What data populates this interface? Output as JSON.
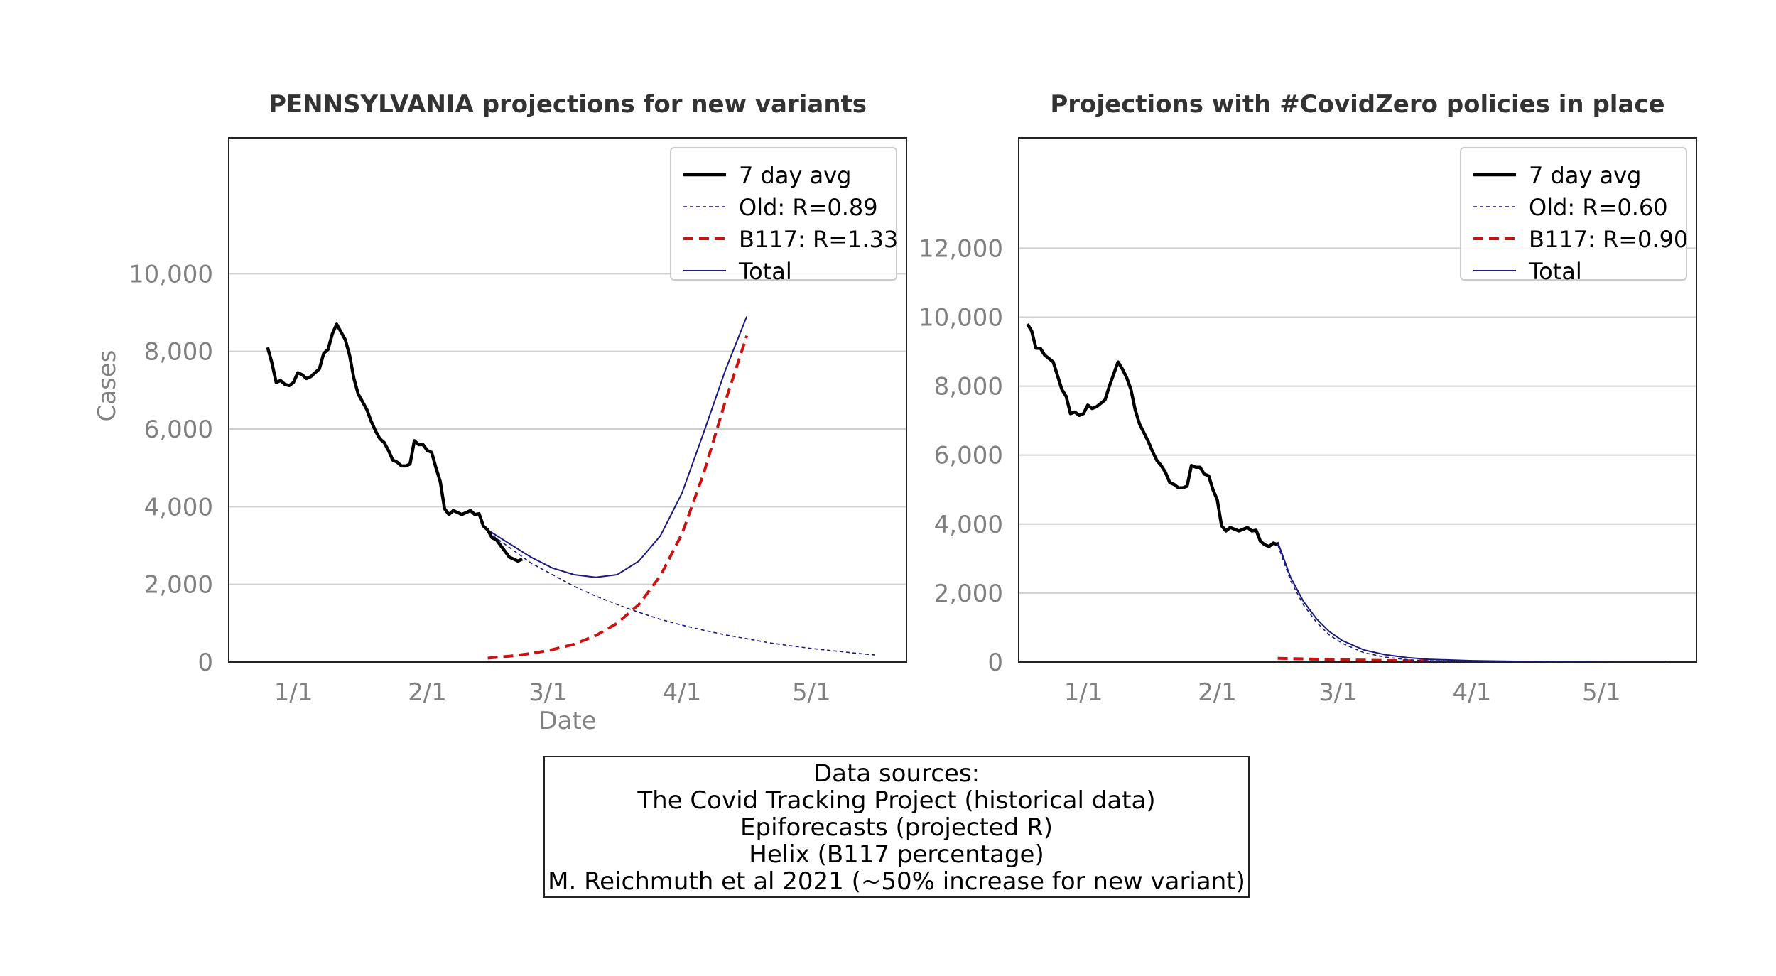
{
  "chart_data": [
    {
      "type": "line",
      "title": "PENNSYLVANIA projections for new variants",
      "xlabel": "Date",
      "ylabel": "Cases",
      "ylim": [
        0,
        13500
      ],
      "xlim": [
        -15,
        142
      ],
      "x_unit": "days since 1/1",
      "xticks": [
        {
          "value": 0,
          "label": "1/1"
        },
        {
          "value": 31,
          "label": "2/1"
        },
        {
          "value": 59,
          "label": "3/1"
        },
        {
          "value": 90,
          "label": "4/1"
        },
        {
          "value": 120,
          "label": "5/1"
        }
      ],
      "yticks": [
        {
          "value": 0,
          "label": "0"
        },
        {
          "value": 2000,
          "label": "2,000"
        },
        {
          "value": 4000,
          "label": "4,000"
        },
        {
          "value": 6000,
          "label": "6,000"
        },
        {
          "value": 8000,
          "label": "8,000"
        },
        {
          "value": 10000,
          "label": "10,000"
        }
      ],
      "grid": "horizontal",
      "legend_position": "top-right",
      "legend": [
        "7 day avg",
        "Old: R=0.89",
        "B117: R=1.33",
        "Total"
      ],
      "series": [
        {
          "name": "7 day avg",
          "style": "solid-thick",
          "color": "#000000",
          "x": [
            -6,
            -5,
            -4,
            -3,
            -2,
            -1,
            0,
            1,
            2,
            3,
            4,
            5,
            6,
            7,
            8,
            9,
            10,
            11,
            12,
            13,
            14,
            15,
            16,
            17,
            18,
            19,
            20,
            21,
            22,
            23,
            24,
            25,
            26,
            27,
            28,
            29,
            30,
            31,
            32,
            33,
            34,
            35,
            36,
            37,
            38,
            39,
            40,
            41,
            42,
            43,
            44,
            45,
            46,
            47,
            48,
            49,
            50,
            51,
            52,
            53
          ],
          "values": [
            8100,
            7700,
            7200,
            7250,
            7150,
            7120,
            7200,
            7450,
            7400,
            7300,
            7350,
            7450,
            7550,
            7950,
            8050,
            8450,
            8700,
            8500,
            8300,
            7900,
            7300,
            6900,
            6700,
            6500,
            6200,
            5950,
            5750,
            5650,
            5450,
            5200,
            5150,
            5050,
            5050,
            5100,
            5700,
            5600,
            5600,
            5450,
            5400,
            5000,
            4650,
            3950,
            3800,
            3900,
            3850,
            3800,
            3850,
            3900,
            3800,
            3820,
            3500,
            3400,
            3200,
            3150,
            3000,
            2850,
            2700,
            2650,
            2600,
            2650
          ]
        },
        {
          "name": "Old: R=0.89",
          "style": "dashed-thin",
          "color": "#1a1a80",
          "x": [
            45,
            50,
            55,
            60,
            65,
            70,
            75,
            80,
            85,
            90,
            95,
            100,
            105,
            110,
            115,
            120,
            125,
            130,
            135
          ],
          "values": [
            3350,
            2950,
            2550,
            2250,
            1950,
            1700,
            1480,
            1280,
            1100,
            950,
            820,
            700,
            600,
            500,
            420,
            350,
            290,
            230,
            180
          ]
        },
        {
          "name": "B117: R=1.33",
          "style": "dashed-thick",
          "color": "#cc1111",
          "x": [
            45,
            50,
            55,
            60,
            65,
            70,
            75,
            80,
            85,
            90,
            95,
            100,
            105
          ],
          "values": [
            100,
            150,
            220,
            320,
            460,
            680,
            1000,
            1480,
            2220,
            3300,
            4850,
            6700,
            8400
          ]
        },
        {
          "name": "Total",
          "style": "solid-thin",
          "color": "#1a1a80",
          "x": [
            45,
            50,
            55,
            60,
            65,
            70,
            75,
            80,
            85,
            90,
            95,
            100,
            105
          ],
          "values": [
            3400,
            3050,
            2700,
            2420,
            2250,
            2180,
            2250,
            2600,
            3250,
            4350,
            5900,
            7500,
            8900
          ]
        }
      ]
    },
    {
      "type": "line",
      "title": "Projections with #CovidZero policies in place",
      "xlabel": "",
      "ylabel": "",
      "ylim": [
        0,
        15200
      ],
      "xlim": [
        -15,
        142
      ],
      "x_unit": "days since 1/1",
      "xticks": [
        {
          "value": 0,
          "label": "1/1"
        },
        {
          "value": 31,
          "label": "2/1"
        },
        {
          "value": 59,
          "label": "3/1"
        },
        {
          "value": 90,
          "label": "4/1"
        },
        {
          "value": 120,
          "label": "5/1"
        }
      ],
      "yticks": [
        {
          "value": 0,
          "label": "0"
        },
        {
          "value": 2000,
          "label": "2,000"
        },
        {
          "value": 4000,
          "label": "4,000"
        },
        {
          "value": 6000,
          "label": "6,000"
        },
        {
          "value": 8000,
          "label": "8,000"
        },
        {
          "value": 10000,
          "label": "10,000"
        },
        {
          "value": 12000,
          "label": "12,000"
        }
      ],
      "grid": "horizontal",
      "legend_position": "top-right",
      "legend": [
        "7 day avg",
        "Old: R=0.60",
        "B117: R=0.90",
        "Total"
      ],
      "series": [
        {
          "name": "7 day avg",
          "style": "solid-thick",
          "color": "#000000",
          "x": [
            -13,
            -12,
            -11,
            -10,
            -9,
            -8,
            -7,
            -6,
            -5,
            -4,
            -3,
            -2,
            -1,
            0,
            1,
            2,
            3,
            4,
            5,
            6,
            7,
            8,
            9,
            10,
            11,
            12,
            13,
            14,
            15,
            16,
            17,
            18,
            19,
            20,
            21,
            22,
            23,
            24,
            25,
            26,
            27,
            28,
            29,
            30,
            31,
            32,
            33,
            34,
            35,
            36,
            37,
            38,
            39,
            40,
            41,
            42,
            43,
            44,
            45
          ],
          "values": [
            9800,
            9600,
            9100,
            9100,
            8900,
            8800,
            8700,
            8300,
            7900,
            7700,
            7200,
            7250,
            7150,
            7200,
            7450,
            7350,
            7400,
            7500,
            7600,
            8000,
            8350,
            8700,
            8500,
            8250,
            7900,
            7300,
            6900,
            6650,
            6400,
            6100,
            5850,
            5700,
            5500,
            5200,
            5150,
            5050,
            5050,
            5100,
            5700,
            5650,
            5650,
            5450,
            5400,
            5000,
            4700,
            3950,
            3800,
            3900,
            3850,
            3800,
            3850,
            3900,
            3800,
            3820,
            3500,
            3400,
            3350,
            3450,
            3400
          ]
        },
        {
          "name": "Old: R=0.60",
          "style": "dashed-thin",
          "color": "#1a1a80",
          "x": [
            45,
            48,
            51,
            54,
            57,
            60,
            65,
            70,
            75,
            80,
            90,
            100,
            110,
            120,
            130,
            135
          ],
          "values": [
            3400,
            2350,
            1650,
            1150,
            780,
            540,
            270,
            140,
            70,
            35,
            10,
            3,
            1,
            0,
            0,
            0
          ]
        },
        {
          "name": "B117: R=0.90",
          "style": "dashed-thick",
          "color": "#cc1111",
          "x": [
            45,
            50,
            55,
            60,
            65,
            70,
            75,
            80
          ],
          "values": [
            110,
            95,
            80,
            65,
            55,
            45,
            37,
            30
          ]
        },
        {
          "name": "Total",
          "style": "solid-thin",
          "color": "#1a1a80",
          "x": [
            45,
            48,
            51,
            54,
            57,
            60,
            65,
            70,
            75,
            80,
            90,
            100,
            110,
            120,
            130,
            135
          ],
          "values": [
            3480,
            2450,
            1750,
            1250,
            880,
            620,
            350,
            210,
            130,
            80,
            40,
            20,
            12,
            8,
            5,
            4
          ]
        }
      ]
    }
  ],
  "sources": {
    "heading": "Data sources:",
    "lines": [
      "The Covid Tracking Project (historical data)",
      "Epiforecasts (projected R)",
      "Helix (B117 percentage)",
      "M. Reichmuth et al 2021 (~50% increase for new variant)"
    ]
  }
}
